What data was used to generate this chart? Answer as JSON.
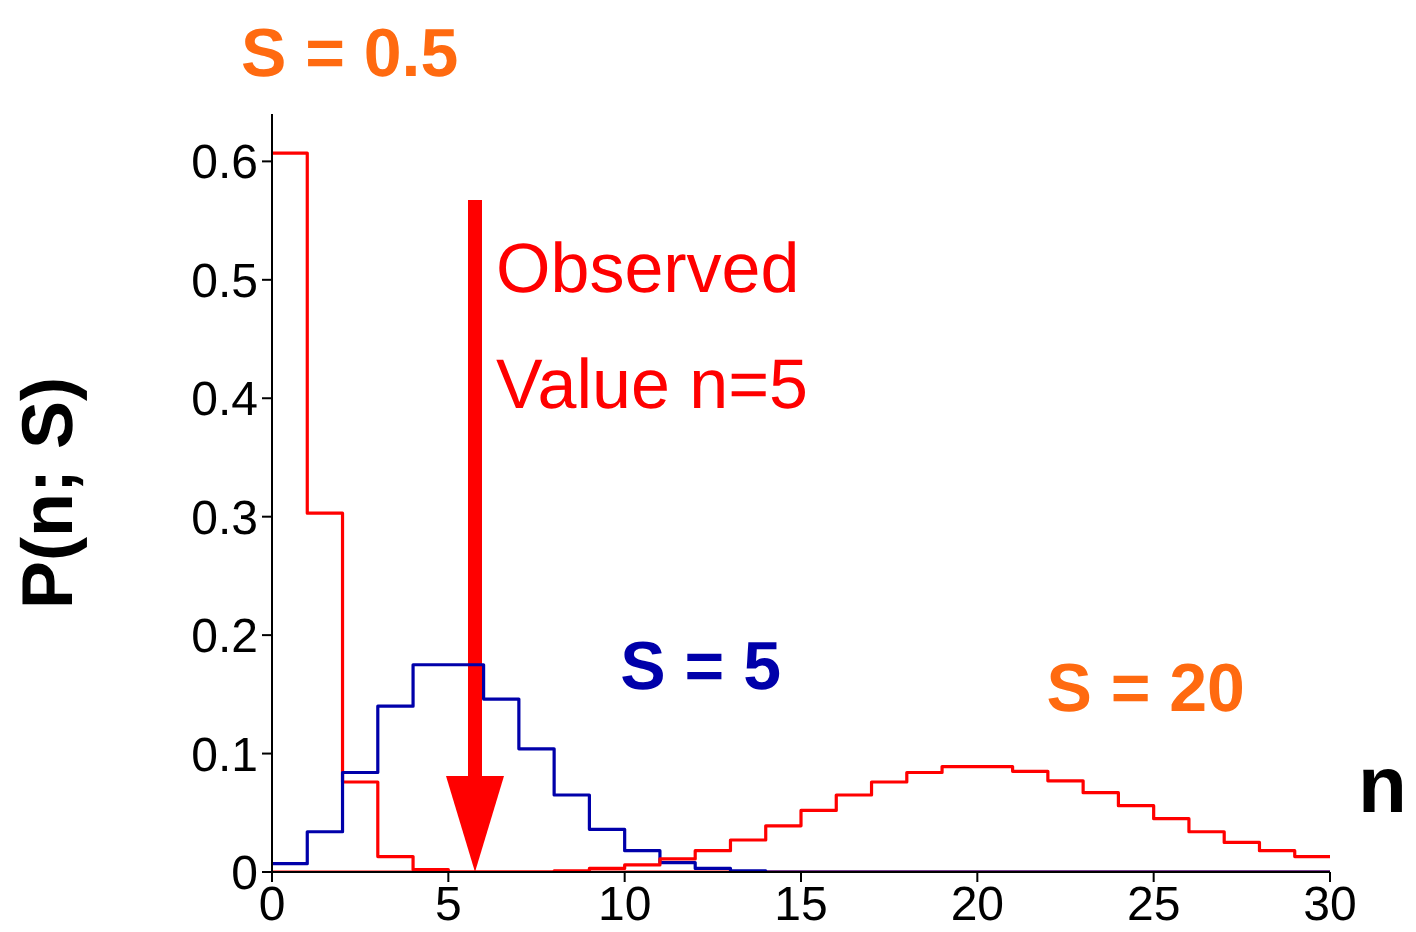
{
  "chart_data": {
    "type": "histogram",
    "xlabel": "n",
    "ylabel": "P(n; S)",
    "bins": [
      0,
      1,
      2,
      3,
      4,
      5,
      6,
      7,
      8,
      9,
      10,
      11,
      12,
      13,
      14,
      15,
      16,
      17,
      18,
      19,
      20,
      21,
      22,
      23,
      24,
      25,
      26,
      27,
      28,
      29,
      30
    ],
    "series": [
      {
        "name": "S = 0.5",
        "color": "#ff0000",
        "values": [
          0.607,
          0.303,
          0.076,
          0.013,
          0.002,
          0,
          0,
          0,
          0,
          0,
          0,
          0,
          0,
          0,
          0,
          0,
          0,
          0,
          0,
          0,
          0,
          0,
          0,
          0,
          0,
          0,
          0,
          0,
          0,
          0
        ]
      },
      {
        "name": "S = 5",
        "color": "#0000aa",
        "values": [
          0.007,
          0.034,
          0.084,
          0.14,
          0.175,
          0.175,
          0.146,
          0.104,
          0.065,
          0.036,
          0.018,
          0.008,
          0.003,
          0.001,
          0,
          0,
          0,
          0,
          0,
          0,
          0,
          0,
          0,
          0,
          0,
          0,
          0,
          0,
          0,
          0
        ]
      },
      {
        "name": "S = 20",
        "color": "#ff0000",
        "values": [
          0,
          0,
          0,
          0,
          0,
          0,
          0,
          0,
          0.001,
          0.003,
          0.006,
          0.011,
          0.018,
          0.027,
          0.039,
          0.052,
          0.065,
          0.076,
          0.084,
          0.089,
          0.089,
          0.085,
          0.077,
          0.067,
          0.056,
          0.045,
          0.034,
          0.025,
          0.018,
          0.013
        ]
      }
    ],
    "annotations": [
      "Observed Value n=5"
    ],
    "xlim": [
      0,
      30
    ],
    "xticks": [
      0,
      5,
      10,
      15,
      20,
      25,
      30
    ],
    "ylim": [
      0,
      0.64
    ],
    "yticks": [
      0,
      0.1,
      0.2,
      0.3,
      0.4,
      0.5,
      0.6
    ],
    "grid": false,
    "legend": false,
    "marker": "none",
    "line_style": "solid"
  }
}
